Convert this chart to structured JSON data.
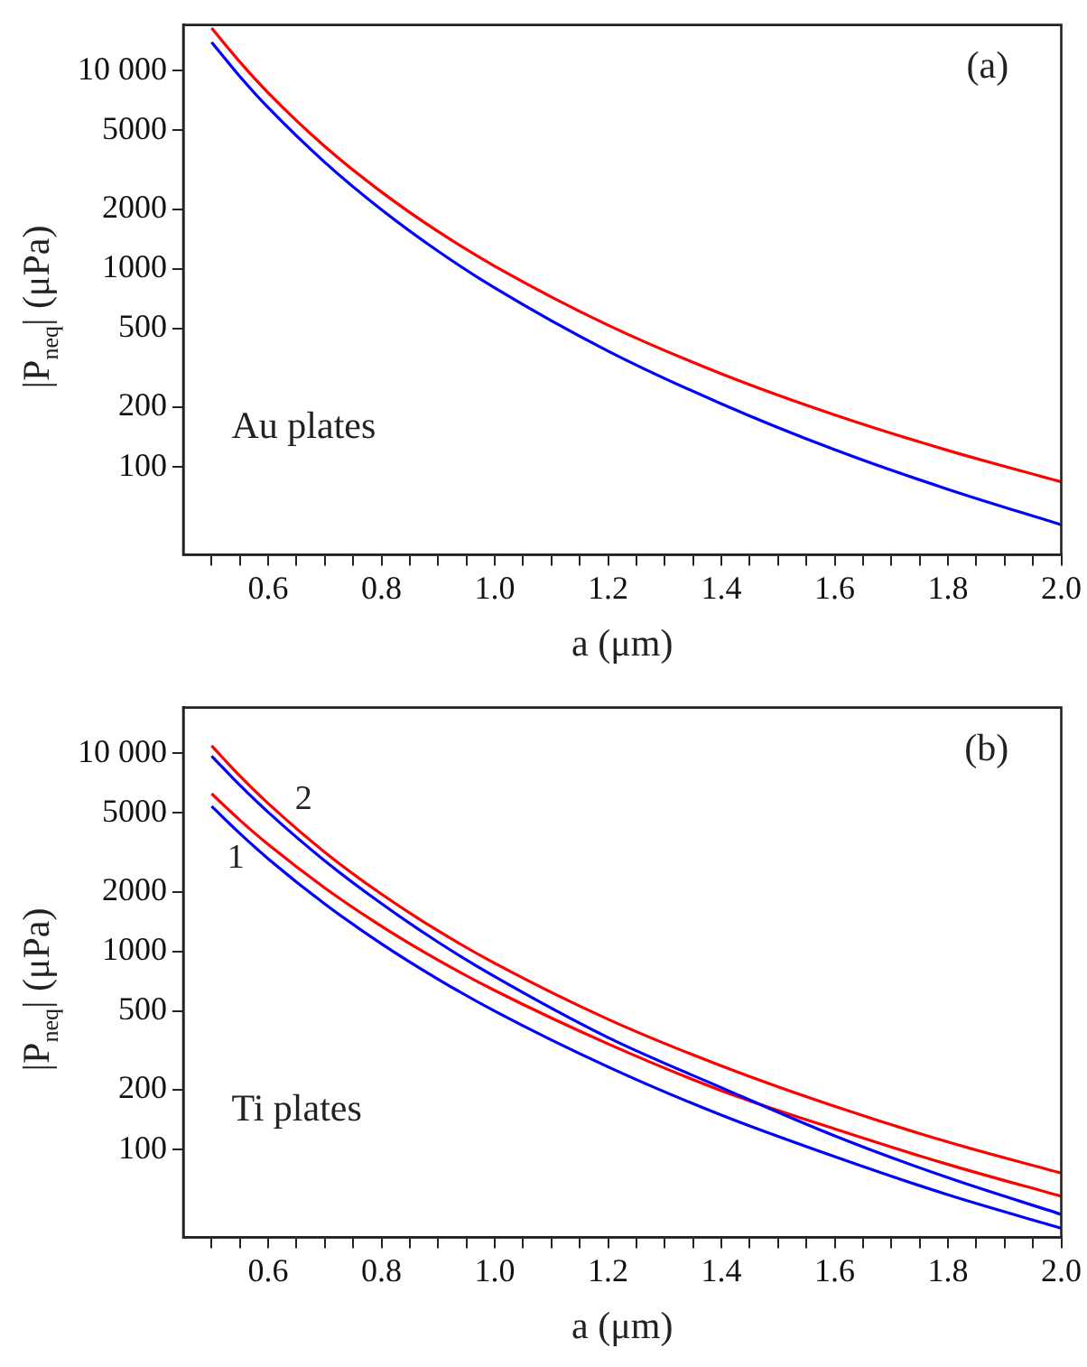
{
  "chart_data": [
    {
      "type": "line",
      "xlabel": "a (μm)",
      "ylabel": "|P$_{neq}$| (μPa)",
      "log": "y",
      "marker": "none",
      "line_style": "solid",
      "x": [
        0.5,
        0.55,
        0.6,
        0.7,
        0.8,
        0.9,
        1.0,
        1.2,
        1.4,
        1.6,
        1.8,
        2.0
      ],
      "series": [
        {
          "color": "#ff0000",
          "values": [
            16400,
            11050,
            7720,
            4140,
            2440,
            1540,
            1030,
            519,
            295,
            183,
            121,
            84
          ]
        },
        {
          "color": "#0000ff",
          "values": [
            13900,
            9340,
            6500,
            3440,
            1985,
            1225,
            800,
            384,
            208,
            122,
            77,
            51
          ]
        }
      ],
      "xlim": [
        0.45,
        2.0
      ],
      "ylim": [
        36,
        17000
      ],
      "xticks": [
        {
          "value": 0.5,
          "label": null
        },
        {
          "value": 0.55,
          "label": null
        },
        0.6,
        {
          "value": 0.65,
          "label": null
        },
        {
          "value": 0.7,
          "label": null
        },
        {
          "value": 0.75,
          "label": null
        },
        0.8,
        {
          "value": 0.85,
          "label": null
        },
        {
          "value": 0.9,
          "label": null
        },
        {
          "value": 0.95,
          "label": null
        },
        {
          "value": 1.0,
          "label": "1.0"
        },
        {
          "value": 1.05,
          "label": null
        },
        {
          "value": 1.1,
          "label": null
        },
        {
          "value": 1.15,
          "label": null
        },
        1.2,
        {
          "value": 1.25,
          "label": null
        },
        {
          "value": 1.3,
          "label": null
        },
        {
          "value": 1.35,
          "label": null
        },
        1.4,
        {
          "value": 1.45,
          "label": null
        },
        {
          "value": 1.5,
          "label": null
        },
        {
          "value": 1.55,
          "label": null
        },
        1.6,
        {
          "value": 1.65,
          "label": null
        },
        {
          "value": 1.7,
          "label": null
        },
        {
          "value": 1.75,
          "label": null
        },
        1.8,
        {
          "value": 1.85,
          "label": null
        },
        {
          "value": 1.9,
          "label": null
        },
        {
          "value": 1.95,
          "label": null
        },
        {
          "value": 2.0,
          "label": "2.0"
        }
      ],
      "yticks": [
        100,
        200,
        500,
        1000,
        2000,
        5000,
        {
          "value": 10000,
          "label": "10 000"
        }
      ],
      "annotations": [
        "(a)",
        "Au plates"
      ]
    },
    {
      "type": "line",
      "xlabel": "a (μm)",
      "ylabel": "|P$_{neq}$| (μPa)",
      "log": "y",
      "marker": "none",
      "line_style": "solid",
      "x": [
        0.5,
        0.55,
        0.6,
        0.7,
        0.8,
        0.9,
        1.0,
        1.2,
        1.4,
        1.6,
        1.8,
        2.0
      ],
      "series": [
        {
          "color": "#ff0000",
          "values": [
            10900,
            7670,
            5570,
            3160,
            1943,
            1268,
            870,
            454,
            264,
            165,
            109,
            76
          ]
        },
        {
          "color": "#0000ff",
          "values": [
            9680,
            6890,
            5030,
            2860,
            1740,
            1112,
            745,
            367,
            205,
            117,
            72,
            47
          ]
        },
        {
          "color": "#ff0000",
          "values": [
            6250,
            4590,
            3460,
            2088,
            1339,
            903,
            634,
            341,
            198,
            127,
            84,
            58
          ]
        },
        {
          "color": "#0000ff",
          "values": [
            5400,
            3930,
            2930,
            1733,
            1091,
            723,
            499,
            261,
            149,
            92,
            59,
            40
          ]
        }
      ],
      "xlim": [
        0.45,
        2.0
      ],
      "ylim": [
        36,
        17000
      ],
      "xticks": [
        {
          "value": 0.5,
          "label": null
        },
        {
          "value": 0.55,
          "label": null
        },
        0.6,
        {
          "value": 0.65,
          "label": null
        },
        {
          "value": 0.7,
          "label": null
        },
        {
          "value": 0.75,
          "label": null
        },
        0.8,
        {
          "value": 0.85,
          "label": null
        },
        {
          "value": 0.9,
          "label": null
        },
        {
          "value": 0.95,
          "label": null
        },
        {
          "value": 1.0,
          "label": "1.0"
        },
        {
          "value": 1.05,
          "label": null
        },
        {
          "value": 1.1,
          "label": null
        },
        {
          "value": 1.15,
          "label": null
        },
        1.2,
        {
          "value": 1.25,
          "label": null
        },
        {
          "value": 1.3,
          "label": null
        },
        {
          "value": 1.35,
          "label": null
        },
        1.4,
        {
          "value": 1.45,
          "label": null
        },
        {
          "value": 1.5,
          "label": null
        },
        {
          "value": 1.55,
          "label": null
        },
        1.6,
        {
          "value": 1.65,
          "label": null
        },
        {
          "value": 1.7,
          "label": null
        },
        {
          "value": 1.75,
          "label": null
        },
        1.8,
        {
          "value": 1.85,
          "label": null
        },
        {
          "value": 1.9,
          "label": null
        },
        {
          "value": 1.95,
          "label": null
        },
        {
          "value": 2.0,
          "label": "2.0"
        }
      ],
      "yticks": [
        100,
        200,
        500,
        1000,
        2000,
        5000,
        {
          "value": 10000,
          "label": "10 000"
        }
      ],
      "annotations": [
        "(b)",
        "Ti plates",
        "1",
        "2"
      ]
    }
  ]
}
